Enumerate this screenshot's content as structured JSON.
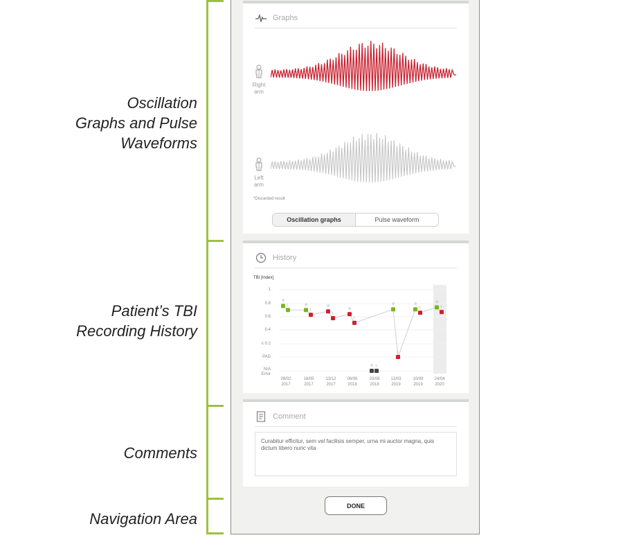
{
  "annotations": [
    {
      "label_lines": [
        "Oscillation",
        "Graphs and Pulse",
        "Waveforms"
      ]
    },
    {
      "label_lines": [
        "Patient’s TBI",
        "Recording History"
      ]
    },
    {
      "label_lines": [
        "Comments"
      ]
    },
    {
      "label_lines": [
        "Navigation Area"
      ]
    }
  ],
  "graphs": {
    "title": "Graphs",
    "icon": "pulse-waveform-icon",
    "right_arm": {
      "label_line1": "Right",
      "label_line2": "arm",
      "color": "#c8202f"
    },
    "left_arm": {
      "label_line1": "Left",
      "label_line2": "arm",
      "color": "#c4c4c4"
    },
    "discard_note": "*Discarded result",
    "tabs": [
      {
        "label": "Oscillation graphs",
        "active": true
      },
      {
        "label": "Pulse waveform",
        "active": false
      }
    ]
  },
  "history": {
    "title": "History",
    "icon": "clock-icon",
    "chart_title": "TBI [Index]"
  },
  "chart_data": {
    "type": "scatter",
    "title": "TBI [Index]",
    "xlabel": "",
    "ylabel": "TBI [Index]",
    "y_tick_labels": [
      "1",
      "0.8",
      "0.6",
      "0.4",
      "≤ 0.2",
      "PAD",
      "N/A Error"
    ],
    "categories": [
      "08/02 2017",
      "18/05 2017",
      "13/12 2017",
      "06/06 2018",
      "20/08 2018",
      "12/03 2019",
      "10/09 2019",
      "24/04 2020"
    ],
    "series": [
      {
        "name": "R",
        "values": [
          0.76,
          0.7,
          0.68,
          0.64,
          "N/A Error",
          0.71,
          0.71,
          0.74
        ],
        "colors": [
          "green",
          "green",
          "red",
          "red",
          "dark",
          "green",
          "green",
          "green"
        ]
      },
      {
        "name": "L",
        "values": [
          0.7,
          0.63,
          0.58,
          0.51,
          "N/A Error",
          "PAD",
          0.66,
          0.67
        ],
        "colors": [
          "green",
          "red",
          "red",
          "red",
          "dark",
          "red",
          "red",
          "red"
        ]
      }
    ],
    "highlighted_category": "24/04 2020",
    "grid": true,
    "colors": {
      "green": "#7ab51d",
      "red": "#d0202e",
      "dark": "#444444",
      "line": "#d0d0d0",
      "highlight": "#ececec"
    }
  },
  "comment": {
    "title": "Comment",
    "icon": "document-icon",
    "text": "Curabitur efficitur, sem vel facilisis semper, urna mi auctor magna, quis dictum libero nunc vita"
  },
  "navigation": {
    "done_label": "DONE"
  }
}
